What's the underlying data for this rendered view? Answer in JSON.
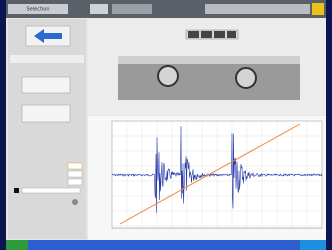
{
  "window": {
    "title": "Selection"
  }
}
